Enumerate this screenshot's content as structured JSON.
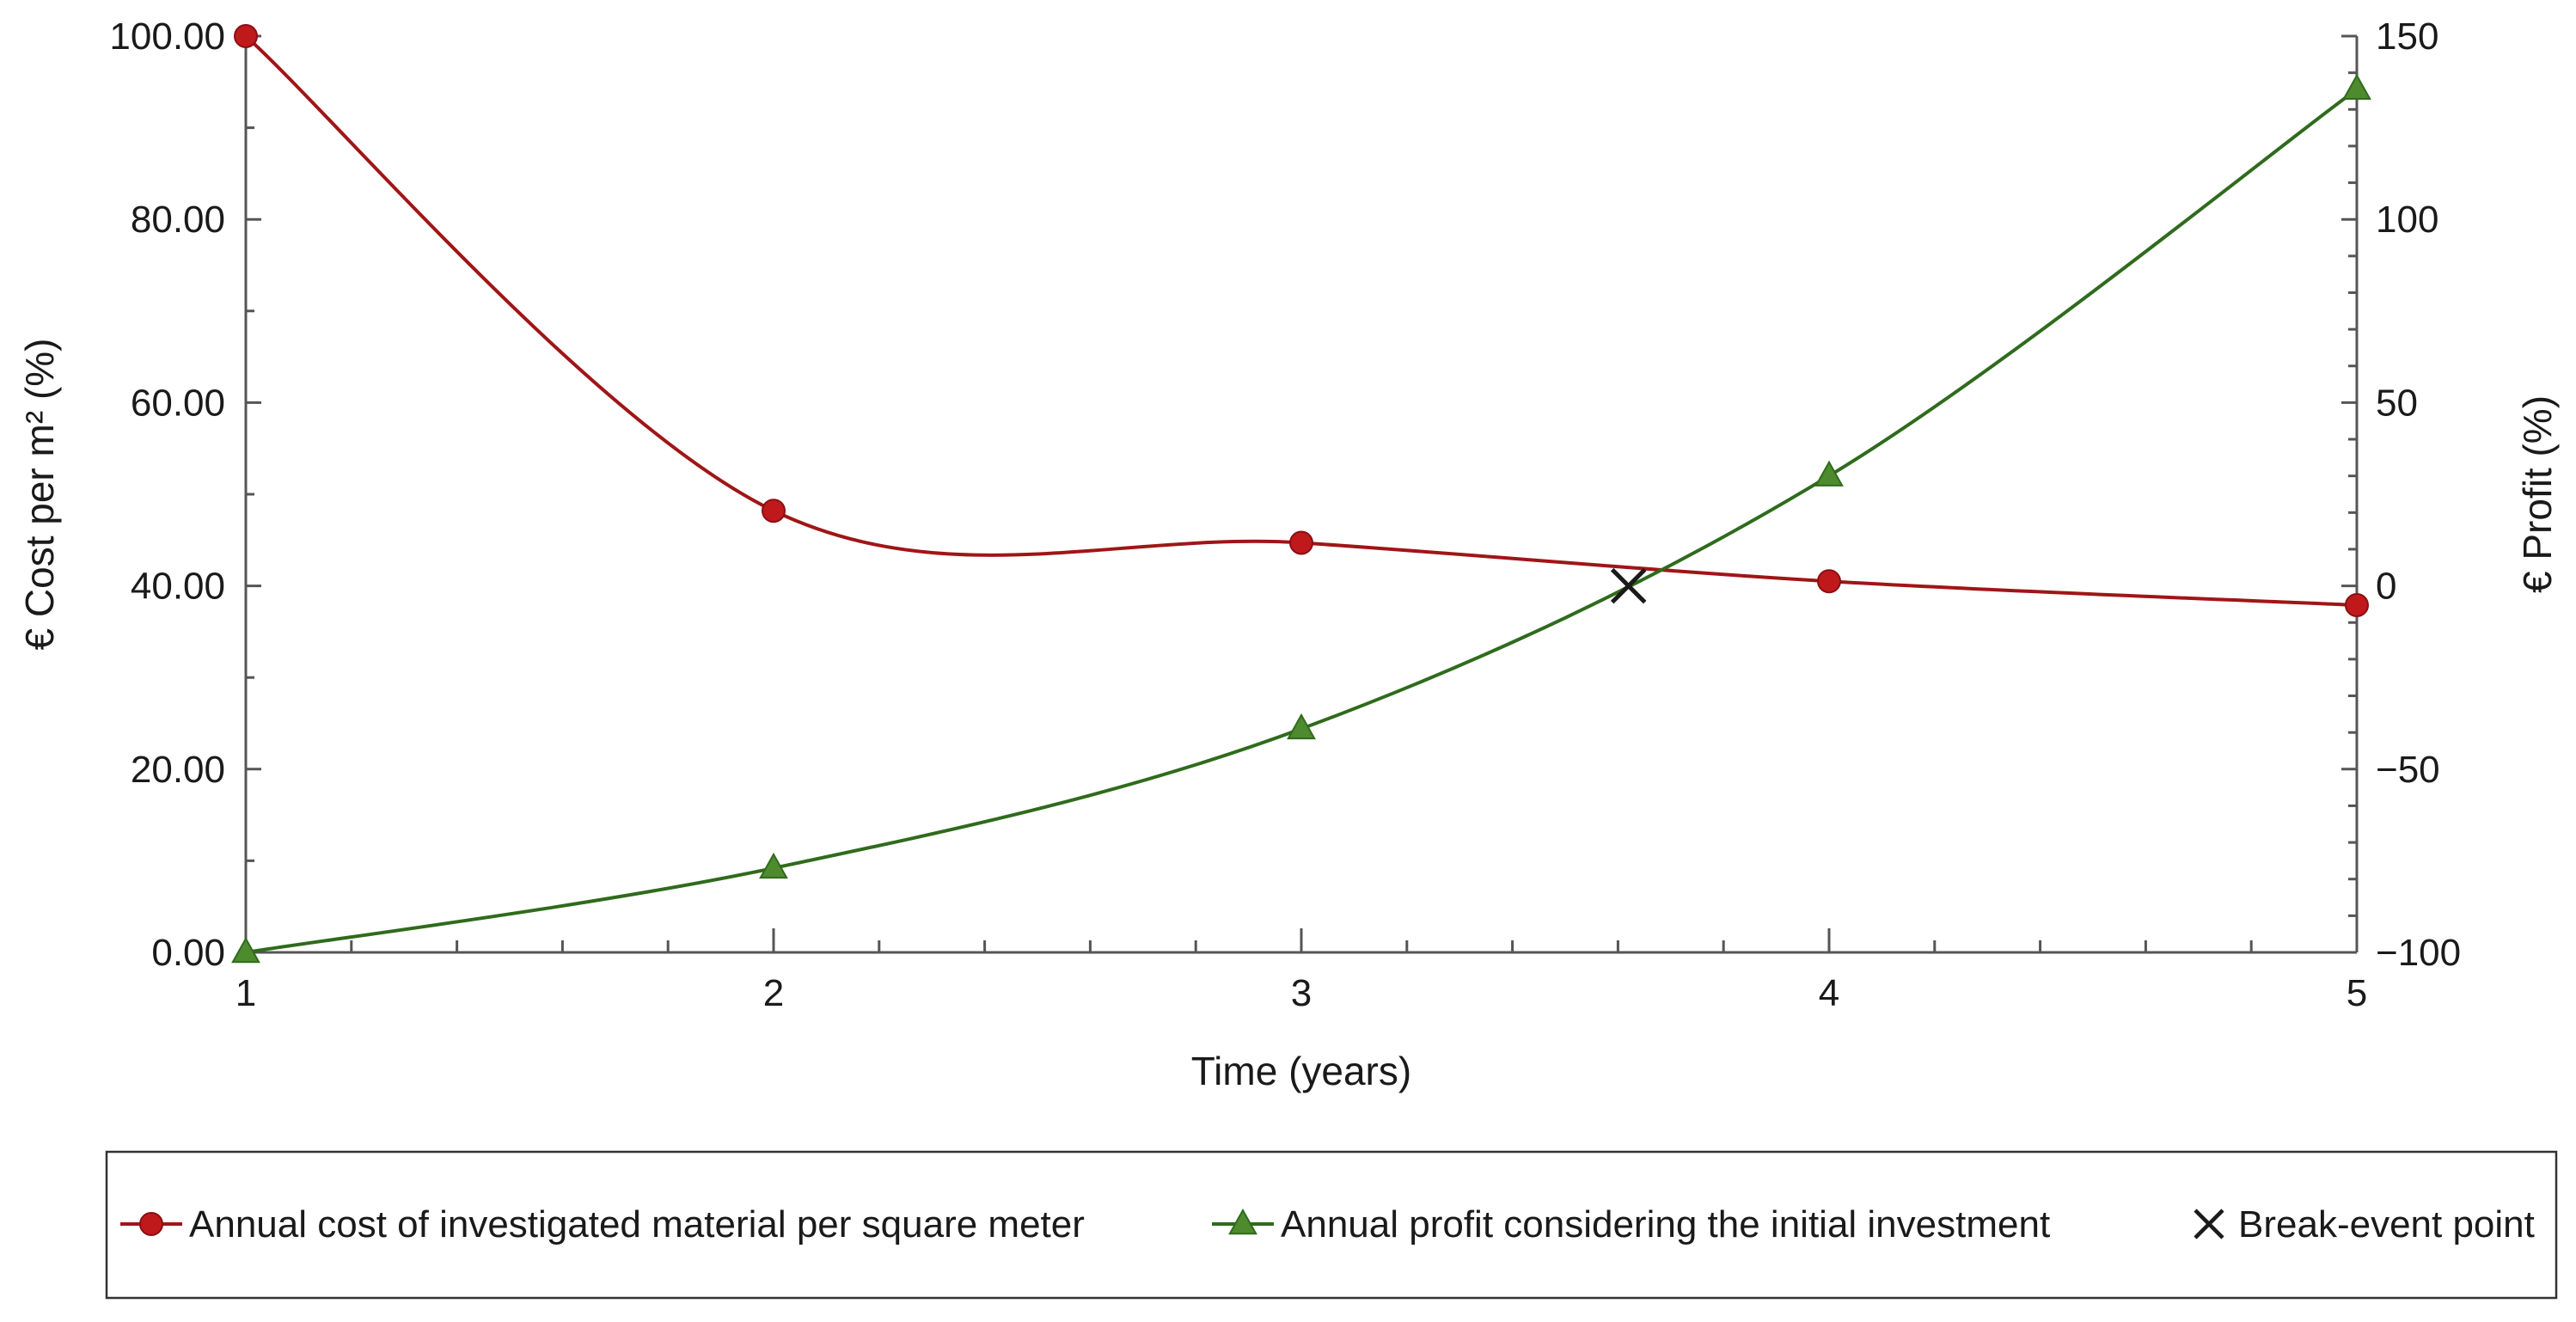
{
  "chart_data": {
    "type": "line",
    "title": "",
    "xlabel": "Time (years)",
    "ylabel_left": "€ Cost per m² (%)",
    "ylabel_right": "€ Profit (%)",
    "x": [
      1,
      2,
      3,
      4,
      5
    ],
    "xlim": [
      1,
      5
    ],
    "xticks": [
      1,
      2,
      3,
      4,
      5
    ],
    "ylim_left": [
      0,
      100
    ],
    "yticks_left": [
      "0.00",
      "20.00",
      "40.00",
      "60.00",
      "80.00",
      "100.00"
    ],
    "ylim_right": [
      -100,
      150
    ],
    "yticks_right": [
      "−100",
      "−50",
      "0",
      "50",
      "100",
      "150"
    ],
    "grid": false,
    "legend_position": "bottom",
    "series": [
      {
        "name": "Annual cost of investigated material per square meter",
        "axis": "left",
        "marker": "circle",
        "color": "#c0191c",
        "line_color": "#a01517",
        "values": [
          100.0,
          48.2,
          44.7,
          40.5,
          37.9
        ]
      },
      {
        "name": "Annual profit considering the initial investment",
        "axis": "right",
        "marker": "triangle",
        "color": "#4e8a2e",
        "line_color": "#2f6b1c",
        "values": [
          -100.0,
          -77.0,
          -39.0,
          30.0,
          135.5
        ]
      }
    ],
    "annotations": [
      {
        "name": "Break-event point",
        "marker": "x",
        "color": "#1a1a1a",
        "x": 3.62,
        "y_right": 0.0
      }
    ]
  }
}
